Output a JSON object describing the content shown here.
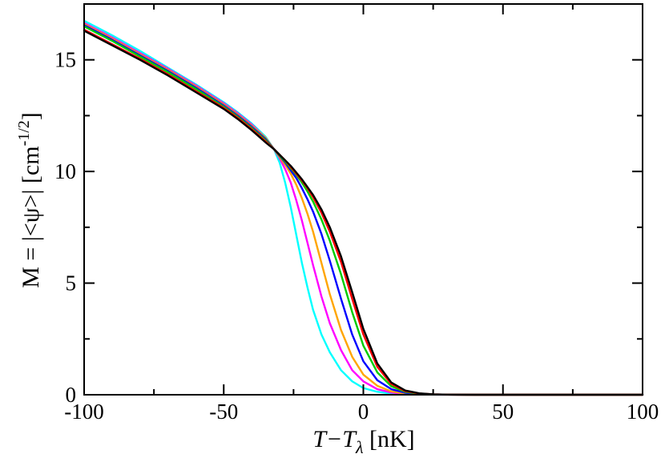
{
  "chart_data": {
    "type": "line",
    "xlabel": {
      "main": "T−T",
      "sub": "λ",
      "unit": " [nK]"
    },
    "ylabel": {
      "main": "M = |<ψ>| [cm",
      "sup": "-1/2",
      "close": "]"
    },
    "xlim": [
      -100,
      100
    ],
    "ylim": [
      0,
      17.5
    ],
    "xticks": [
      -100,
      -50,
      0,
      50,
      100
    ],
    "yticks": [
      0,
      5,
      10,
      15
    ],
    "x_tick_labels": [
      "-100",
      "-50",
      "0",
      "50",
      "100"
    ],
    "y_tick_labels": [
      "0",
      "5",
      "10",
      "15"
    ],
    "grid": false,
    "series": [
      {
        "color": "#00ffff",
        "x": [
          -100,
          -90,
          -80,
          -70,
          -60,
          -50,
          -45,
          -40,
          -35,
          -32,
          -30,
          -28,
          -26,
          -24,
          -22,
          -20,
          -18,
          -15,
          -12,
          -8,
          -4,
          0,
          5,
          10,
          15,
          20,
          25,
          30,
          40,
          50,
          60,
          80,
          100
        ],
        "y": [
          16.75,
          16.1,
          15.4,
          14.65,
          13.9,
          13.1,
          12.65,
          12.15,
          11.55,
          11.0,
          10.4,
          9.5,
          8.4,
          7.15,
          5.9,
          4.8,
          3.8,
          2.7,
          1.9,
          1.1,
          0.6,
          0.3,
          0.13,
          0.05,
          0.02,
          0.01,
          0.005,
          0.002,
          0,
          0,
          0,
          0,
          0
        ]
      },
      {
        "color": "#ff00ff",
        "x": [
          -100,
          -90,
          -80,
          -70,
          -60,
          -50,
          -45,
          -40,
          -35,
          -32,
          -30,
          -28,
          -26,
          -24,
          -22,
          -20,
          -18,
          -15,
          -12,
          -8,
          -4,
          0,
          5,
          10,
          15,
          20,
          25,
          30,
          40,
          50,
          60,
          80,
          100
        ],
        "y": [
          16.65,
          16.0,
          15.3,
          14.6,
          13.85,
          13.05,
          12.6,
          12.1,
          11.5,
          11.0,
          10.6,
          10.1,
          9.5,
          8.7,
          7.8,
          6.8,
          5.8,
          4.4,
          3.2,
          2.0,
          1.1,
          0.6,
          0.25,
          0.1,
          0.04,
          0.015,
          0.007,
          0.003,
          0,
          0,
          0,
          0,
          0
        ]
      },
      {
        "color": "#ffa500",
        "x": [
          -100,
          -90,
          -80,
          -70,
          -60,
          -50,
          -45,
          -40,
          -35,
          -32,
          -30,
          -28,
          -26,
          -24,
          -22,
          -20,
          -18,
          -15,
          -12,
          -8,
          -4,
          0,
          5,
          10,
          15,
          20,
          25,
          30,
          40,
          50,
          60,
          80,
          100
        ],
        "y": [
          16.6,
          15.95,
          15.25,
          14.55,
          13.8,
          13.0,
          12.55,
          12.05,
          11.5,
          11.0,
          10.65,
          10.3,
          9.9,
          9.4,
          8.8,
          8.1,
          7.3,
          5.9,
          4.5,
          2.9,
          1.7,
          0.9,
          0.4,
          0.15,
          0.06,
          0.025,
          0.01,
          0.004,
          0,
          0,
          0,
          0,
          0
        ]
      },
      {
        "color": "#0000ff",
        "x": [
          -100,
          -90,
          -80,
          -70,
          -60,
          -50,
          -45,
          -40,
          -35,
          -32,
          -30,
          -28,
          -26,
          -24,
          -22,
          -20,
          -18,
          -15,
          -12,
          -8,
          -4,
          0,
          5,
          10,
          15,
          20,
          25,
          30,
          40,
          50,
          60,
          80,
          100
        ],
        "y": [
          16.55,
          15.9,
          15.2,
          14.5,
          13.75,
          12.95,
          12.5,
          12.0,
          11.45,
          11.0,
          10.7,
          10.4,
          10.05,
          9.7,
          9.25,
          8.75,
          8.2,
          7.2,
          6.0,
          4.3,
          2.7,
          1.5,
          0.65,
          0.25,
          0.09,
          0.035,
          0.013,
          0.005,
          0,
          0,
          0,
          0,
          0
        ]
      },
      {
        "color": "#00cc00",
        "x": [
          -100,
          -90,
          -80,
          -70,
          -60,
          -50,
          -45,
          -40,
          -35,
          -32,
          -30,
          -28,
          -26,
          -24,
          -22,
          -20,
          -18,
          -15,
          -12,
          -8,
          -4,
          0,
          5,
          10,
          15,
          20,
          25,
          30,
          40,
          50,
          60,
          80,
          100
        ],
        "y": [
          16.5,
          15.85,
          15.15,
          14.45,
          13.7,
          12.9,
          12.45,
          11.95,
          11.4,
          11.0,
          10.72,
          10.45,
          10.15,
          9.85,
          9.5,
          9.1,
          8.65,
          7.85,
          6.9,
          5.4,
          3.7,
          2.2,
          1.0,
          0.38,
          0.13,
          0.045,
          0.016,
          0.006,
          0,
          0,
          0,
          0,
          0
        ]
      },
      {
        "color": "#ff0000",
        "x": [
          -100,
          -90,
          -80,
          -70,
          -60,
          -50,
          -45,
          -40,
          -35,
          -32,
          -30,
          -28,
          -26,
          -24,
          -22,
          -20,
          -18,
          -15,
          -12,
          -8,
          -4,
          0,
          5,
          10,
          15,
          20,
          25,
          30,
          40,
          50,
          60,
          80,
          100
        ],
        "y": [
          16.35,
          15.7,
          15.05,
          14.35,
          13.6,
          12.85,
          12.4,
          11.9,
          11.35,
          11.0,
          10.75,
          10.5,
          10.2,
          9.9,
          9.6,
          9.25,
          8.85,
          8.15,
          7.3,
          5.95,
          4.3,
          2.7,
          1.25,
          0.48,
          0.16,
          0.055,
          0.019,
          0.007,
          0,
          0,
          0,
          0,
          0
        ]
      },
      {
        "color": "#000000",
        "x": [
          -100,
          -90,
          -80,
          -70,
          -60,
          -50,
          -45,
          -40,
          -35,
          -32,
          -30,
          -28,
          -26,
          -24,
          -22,
          -20,
          -18,
          -15,
          -12,
          -8,
          -4,
          0,
          5,
          10,
          15,
          20,
          25,
          30,
          40,
          50,
          60,
          80,
          100
        ],
        "y": [
          16.3,
          15.65,
          15.0,
          14.3,
          13.55,
          12.8,
          12.35,
          11.85,
          11.3,
          11.0,
          10.75,
          10.5,
          10.25,
          9.95,
          9.65,
          9.3,
          8.95,
          8.3,
          7.5,
          6.2,
          4.6,
          2.95,
          1.4,
          0.55,
          0.19,
          0.065,
          0.022,
          0.008,
          0,
          0,
          0,
          0,
          0
        ]
      }
    ]
  }
}
